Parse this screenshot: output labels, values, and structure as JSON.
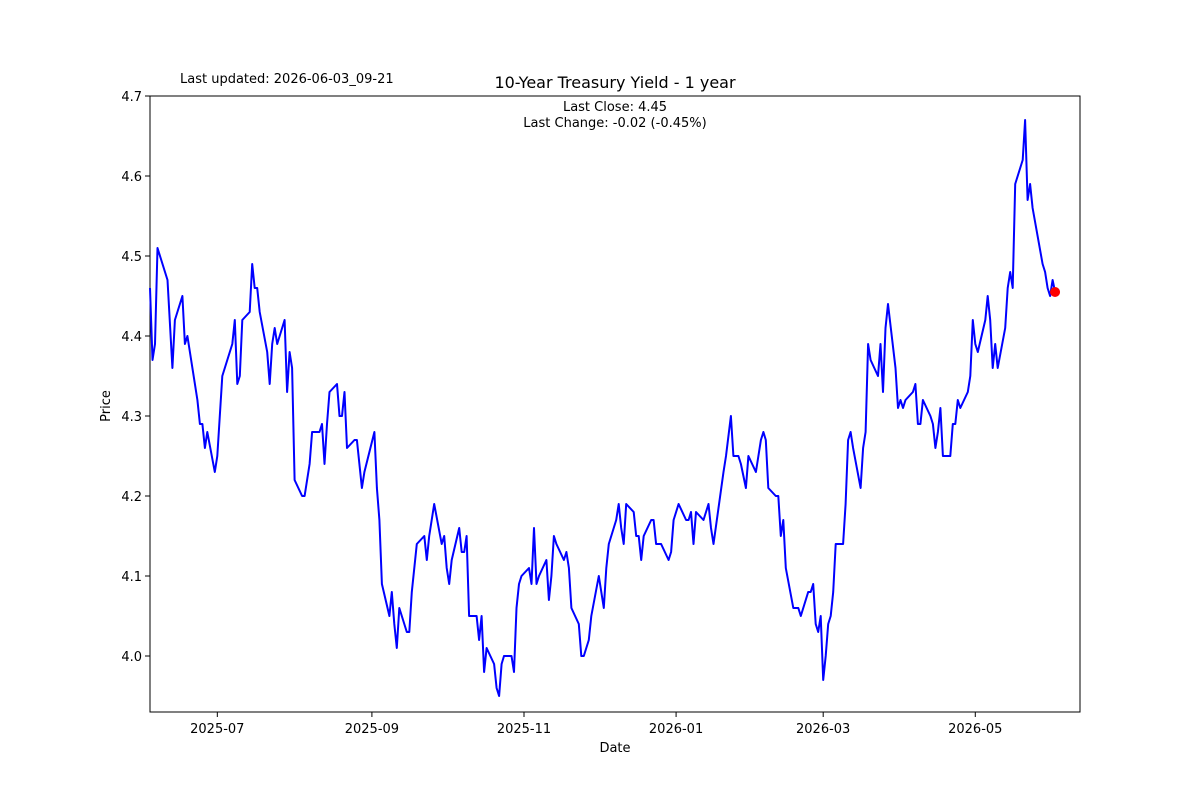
{
  "last_updated": "Last updated: 2026-06-03_09-21",
  "annotation": {
    "line1": "Last Close: 4.45",
    "line2": "Last Change: -0.02 (-0.45%)"
  },
  "chart_data": {
    "type": "line",
    "title": "10-Year Treasury Yield - 1 year",
    "xlabel": "Date",
    "ylabel": "Price",
    "xlim": [
      "2025-06-04",
      "2026-06-12"
    ],
    "ylim": [
      3.93,
      4.7
    ],
    "x_ticks": [
      {
        "date": "2025-07-01",
        "label": "2025-07"
      },
      {
        "date": "2025-09-01",
        "label": "2025-09"
      },
      {
        "date": "2025-11-01",
        "label": "2025-11"
      },
      {
        "date": "2026-01-01",
        "label": "2026-01"
      },
      {
        "date": "2026-03-01",
        "label": "2026-03"
      },
      {
        "date": "2026-05-01",
        "label": "2026-05"
      }
    ],
    "y_ticks": [
      4.0,
      4.1,
      4.2,
      4.3,
      4.4,
      4.5,
      4.6,
      4.7
    ],
    "grid": false,
    "line_color": "#0000ff",
    "marker_color": "#ff0000",
    "last_point": {
      "x": "2026-06-02",
      "y": 4.455
    },
    "series": [
      {
        "points": [
          [
            "2025-06-04",
            4.46
          ],
          [
            "2025-06-05",
            4.37
          ],
          [
            "2025-06-06",
            4.39
          ],
          [
            "2025-06-07",
            4.51
          ],
          [
            "2025-06-11",
            4.47
          ],
          [
            "2025-06-13",
            4.36
          ],
          [
            "2025-06-14",
            4.42
          ],
          [
            "2025-06-17",
            4.45
          ],
          [
            "2025-06-18",
            4.39
          ],
          [
            "2025-06-19",
            4.4
          ],
          [
            "2025-06-20",
            4.38
          ],
          [
            "2025-06-23",
            4.32
          ],
          [
            "2025-06-24",
            4.29
          ],
          [
            "2025-06-25",
            4.29
          ],
          [
            "2025-06-26",
            4.26
          ],
          [
            "2025-06-27",
            4.28
          ],
          [
            "2025-06-30",
            4.23
          ],
          [
            "2025-07-01",
            4.25
          ],
          [
            "2025-07-03",
            4.35
          ],
          [
            "2025-07-07",
            4.39
          ],
          [
            "2025-07-08",
            4.42
          ],
          [
            "2025-07-09",
            4.34
          ],
          [
            "2025-07-10",
            4.35
          ],
          [
            "2025-07-11",
            4.42
          ],
          [
            "2025-07-14",
            4.43
          ],
          [
            "2025-07-15",
            4.49
          ],
          [
            "2025-07-16",
            4.46
          ],
          [
            "2025-07-17",
            4.46
          ],
          [
            "2025-07-18",
            4.43
          ],
          [
            "2025-07-21",
            4.38
          ],
          [
            "2025-07-22",
            4.34
          ],
          [
            "2025-07-23",
            4.39
          ],
          [
            "2025-07-24",
            4.41
          ],
          [
            "2025-07-25",
            4.39
          ],
          [
            "2025-07-28",
            4.42
          ],
          [
            "2025-07-29",
            4.33
          ],
          [
            "2025-07-30",
            4.38
          ],
          [
            "2025-07-31",
            4.36
          ],
          [
            "2025-08-01",
            4.22
          ],
          [
            "2025-08-04",
            4.2
          ],
          [
            "2025-08-05",
            4.2
          ],
          [
            "2025-08-06",
            4.22
          ],
          [
            "2025-08-07",
            4.24
          ],
          [
            "2025-08-08",
            4.28
          ],
          [
            "2025-08-11",
            4.28
          ],
          [
            "2025-08-12",
            4.29
          ],
          [
            "2025-08-13",
            4.24
          ],
          [
            "2025-08-14",
            4.29
          ],
          [
            "2025-08-15",
            4.33
          ],
          [
            "2025-08-18",
            4.34
          ],
          [
            "2025-08-19",
            4.3
          ],
          [
            "2025-08-20",
            4.3
          ],
          [
            "2025-08-21",
            4.33
          ],
          [
            "2025-08-22",
            4.26
          ],
          [
            "2025-08-25",
            4.27
          ],
          [
            "2025-08-26",
            4.27
          ],
          [
            "2025-08-27",
            4.24
          ],
          [
            "2025-08-28",
            4.21
          ],
          [
            "2025-08-29",
            4.23
          ],
          [
            "2025-09-02",
            4.28
          ],
          [
            "2025-09-03",
            4.21
          ],
          [
            "2025-09-04",
            4.17
          ],
          [
            "2025-09-05",
            4.09
          ],
          [
            "2025-09-08",
            4.05
          ],
          [
            "2025-09-09",
            4.08
          ],
          [
            "2025-09-10",
            4.04
          ],
          [
            "2025-09-11",
            4.01
          ],
          [
            "2025-09-12",
            4.06
          ],
          [
            "2025-09-15",
            4.03
          ],
          [
            "2025-09-16",
            4.03
          ],
          [
            "2025-09-17",
            4.08
          ],
          [
            "2025-09-18",
            4.11
          ],
          [
            "2025-09-19",
            4.14
          ],
          [
            "2025-09-22",
            4.15
          ],
          [
            "2025-09-23",
            4.12
          ],
          [
            "2025-09-24",
            4.15
          ],
          [
            "2025-09-25",
            4.17
          ],
          [
            "2025-09-26",
            4.19
          ],
          [
            "2025-09-29",
            4.14
          ],
          [
            "2025-09-30",
            4.15
          ],
          [
            "2025-10-01",
            4.11
          ],
          [
            "2025-10-02",
            4.09
          ],
          [
            "2025-10-03",
            4.12
          ],
          [
            "2025-10-06",
            4.16
          ],
          [
            "2025-10-07",
            4.13
          ],
          [
            "2025-10-08",
            4.13
          ],
          [
            "2025-10-09",
            4.15
          ],
          [
            "2025-10-10",
            4.05
          ],
          [
            "2025-10-13",
            4.05
          ],
          [
            "2025-10-14",
            4.02
          ],
          [
            "2025-10-15",
            4.05
          ],
          [
            "2025-10-16",
            3.98
          ],
          [
            "2025-10-17",
            4.01
          ],
          [
            "2025-10-20",
            3.99
          ],
          [
            "2025-10-21",
            3.96
          ],
          [
            "2025-10-22",
            3.95
          ],
          [
            "2025-10-23",
            3.99
          ],
          [
            "2025-10-24",
            4.0
          ],
          [
            "2025-10-27",
            4.0
          ],
          [
            "2025-10-28",
            3.98
          ],
          [
            "2025-10-29",
            4.06
          ],
          [
            "2025-10-30",
            4.09
          ],
          [
            "2025-10-31",
            4.1
          ],
          [
            "2025-11-03",
            4.11
          ],
          [
            "2025-11-04",
            4.09
          ],
          [
            "2025-11-05",
            4.16
          ],
          [
            "2025-11-06",
            4.09
          ],
          [
            "2025-11-07",
            4.1
          ],
          [
            "2025-11-10",
            4.12
          ],
          [
            "2025-11-11",
            4.07
          ],
          [
            "2025-11-12",
            4.1
          ],
          [
            "2025-11-13",
            4.15
          ],
          [
            "2025-11-14",
            4.14
          ],
          [
            "2025-11-17",
            4.12
          ],
          [
            "2025-11-18",
            4.13
          ],
          [
            "2025-11-19",
            4.11
          ],
          [
            "2025-11-20",
            4.06
          ],
          [
            "2025-11-23",
            4.04
          ],
          [
            "2025-11-24",
            4.0
          ],
          [
            "2025-11-25",
            4.0
          ],
          [
            "2025-11-26",
            4.01
          ],
          [
            "2025-11-27",
            4.02
          ],
          [
            "2025-11-28",
            4.05
          ],
          [
            "2025-12-01",
            4.1
          ],
          [
            "2025-12-02",
            4.08
          ],
          [
            "2025-12-03",
            4.06
          ],
          [
            "2025-12-04",
            4.11
          ],
          [
            "2025-12-05",
            4.14
          ],
          [
            "2025-12-08",
            4.17
          ],
          [
            "2025-12-09",
            4.19
          ],
          [
            "2025-12-10",
            4.16
          ],
          [
            "2025-12-11",
            4.14
          ],
          [
            "2025-12-12",
            4.19
          ],
          [
            "2025-12-15",
            4.18
          ],
          [
            "2025-12-16",
            4.15
          ],
          [
            "2025-12-17",
            4.15
          ],
          [
            "2025-12-18",
            4.12
          ],
          [
            "2025-12-19",
            4.15
          ],
          [
            "2025-12-22",
            4.17
          ],
          [
            "2025-12-23",
            4.17
          ],
          [
            "2025-12-24",
            4.14
          ],
          [
            "2025-12-26",
            4.14
          ],
          [
            "2025-12-29",
            4.12
          ],
          [
            "2025-12-30",
            4.13
          ],
          [
            "2025-12-31",
            4.17
          ],
          [
            "2026-01-02",
            4.19
          ],
          [
            "2026-01-05",
            4.17
          ],
          [
            "2026-01-06",
            4.17
          ],
          [
            "2026-01-07",
            4.18
          ],
          [
            "2026-01-08",
            4.14
          ],
          [
            "2026-01-09",
            4.18
          ],
          [
            "2026-01-12",
            4.17
          ],
          [
            "2026-01-13",
            4.18
          ],
          [
            "2026-01-14",
            4.19
          ],
          [
            "2026-01-15",
            4.16
          ],
          [
            "2026-01-16",
            4.14
          ],
          [
            "2026-01-20",
            4.23
          ],
          [
            "2026-01-21",
            4.25
          ],
          [
            "2026-01-23",
            4.3
          ],
          [
            "2026-01-24",
            4.25
          ],
          [
            "2026-01-26",
            4.25
          ],
          [
            "2026-01-27",
            4.24
          ],
          [
            "2026-01-29",
            4.21
          ],
          [
            "2026-01-30",
            4.25
          ],
          [
            "2026-02-02",
            4.23
          ],
          [
            "2026-02-03",
            4.25
          ],
          [
            "2026-02-04",
            4.27
          ],
          [
            "2026-02-05",
            4.28
          ],
          [
            "2026-02-06",
            4.27
          ],
          [
            "2026-02-07",
            4.21
          ],
          [
            "2026-02-10",
            4.2
          ],
          [
            "2026-02-11",
            4.2
          ],
          [
            "2026-02-12",
            4.15
          ],
          [
            "2026-02-13",
            4.17
          ],
          [
            "2026-02-14",
            4.11
          ],
          [
            "2026-02-17",
            4.06
          ],
          [
            "2026-02-18",
            4.06
          ],
          [
            "2026-02-19",
            4.06
          ],
          [
            "2026-02-20",
            4.05
          ],
          [
            "2026-02-23",
            4.08
          ],
          [
            "2026-02-24",
            4.08
          ],
          [
            "2026-02-25",
            4.09
          ],
          [
            "2026-02-26",
            4.04
          ],
          [
            "2026-02-27",
            4.03
          ],
          [
            "2026-02-28",
            4.05
          ],
          [
            "2026-03-01",
            3.97
          ],
          [
            "2026-03-02",
            4.0
          ],
          [
            "2026-03-03",
            4.04
          ],
          [
            "2026-03-04",
            4.05
          ],
          [
            "2026-03-05",
            4.08
          ],
          [
            "2026-03-06",
            4.14
          ],
          [
            "2026-03-09",
            4.14
          ],
          [
            "2026-03-10",
            4.19
          ],
          [
            "2026-03-11",
            4.27
          ],
          [
            "2026-03-12",
            4.28
          ],
          [
            "2026-03-13",
            4.26
          ],
          [
            "2026-03-16",
            4.21
          ],
          [
            "2026-03-17",
            4.26
          ],
          [
            "2026-03-18",
            4.28
          ],
          [
            "2026-03-19",
            4.39
          ],
          [
            "2026-03-20",
            4.37
          ],
          [
            "2026-03-23",
            4.35
          ],
          [
            "2026-03-24",
            4.39
          ],
          [
            "2026-03-25",
            4.33
          ],
          [
            "2026-03-26",
            4.41
          ],
          [
            "2026-03-27",
            4.44
          ],
          [
            "2026-03-30",
            4.36
          ],
          [
            "2026-03-31",
            4.31
          ],
          [
            "2026-04-01",
            4.32
          ],
          [
            "2026-04-02",
            4.31
          ],
          [
            "2026-04-03",
            4.32
          ],
          [
            "2026-04-06",
            4.33
          ],
          [
            "2026-04-07",
            4.34
          ],
          [
            "2026-04-08",
            4.29
          ],
          [
            "2026-04-09",
            4.29
          ],
          [
            "2026-04-10",
            4.32
          ],
          [
            "2026-04-13",
            4.3
          ],
          [
            "2026-04-14",
            4.29
          ],
          [
            "2026-04-15",
            4.26
          ],
          [
            "2026-04-16",
            4.28
          ],
          [
            "2026-04-17",
            4.31
          ],
          [
            "2026-04-18",
            4.25
          ],
          [
            "2026-04-21",
            4.25
          ],
          [
            "2026-04-22",
            4.29
          ],
          [
            "2026-04-23",
            4.29
          ],
          [
            "2026-04-24",
            4.32
          ],
          [
            "2026-04-25",
            4.31
          ],
          [
            "2026-04-28",
            4.33
          ],
          [
            "2026-04-29",
            4.35
          ],
          [
            "2026-04-30",
            4.42
          ],
          [
            "2026-05-01",
            4.39
          ],
          [
            "2026-05-02",
            4.38
          ],
          [
            "2026-05-05",
            4.42
          ],
          [
            "2026-05-06",
            4.45
          ],
          [
            "2026-05-07",
            4.42
          ],
          [
            "2026-05-08",
            4.36
          ],
          [
            "2026-05-09",
            4.39
          ],
          [
            "2026-05-10",
            4.36
          ],
          [
            "2026-05-13",
            4.41
          ],
          [
            "2026-05-14",
            4.46
          ],
          [
            "2026-05-15",
            4.48
          ],
          [
            "2026-05-16",
            4.46
          ],
          [
            "2026-05-17",
            4.59
          ],
          [
            "2026-05-20",
            4.62
          ],
          [
            "2026-05-21",
            4.67
          ],
          [
            "2026-05-22",
            4.57
          ],
          [
            "2026-05-23",
            4.59
          ],
          [
            "2026-05-24",
            4.56
          ],
          [
            "2026-05-28",
            4.49
          ],
          [
            "2026-05-29",
            4.48
          ],
          [
            "2026-05-30",
            4.46
          ],
          [
            "2026-05-31",
            4.45
          ],
          [
            "2026-06-01",
            4.47
          ],
          [
            "2026-06-02",
            4.455
          ]
        ]
      }
    ]
  }
}
